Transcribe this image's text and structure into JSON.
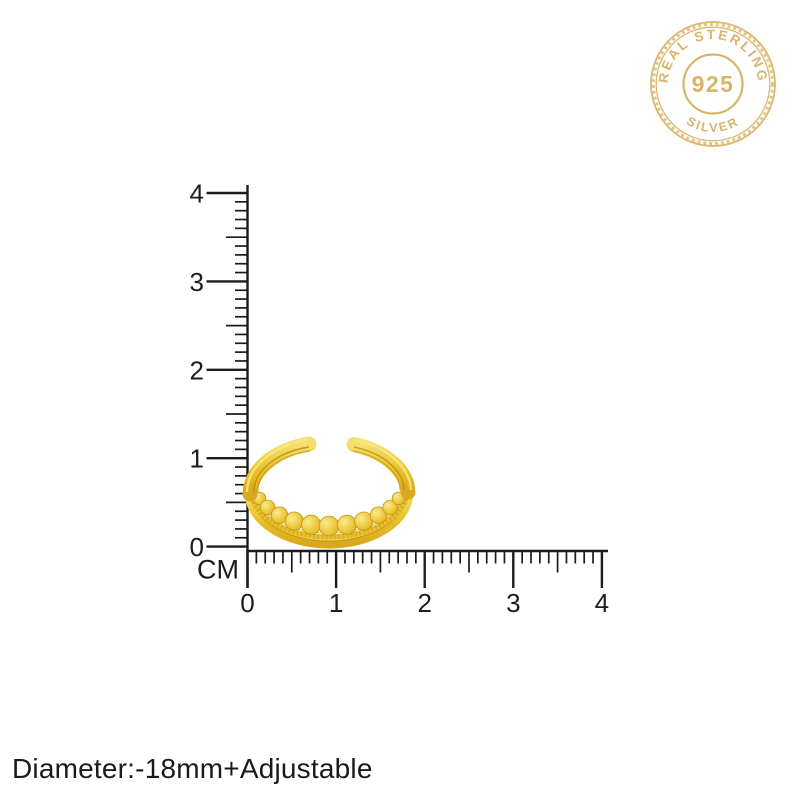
{
  "page": {
    "background_color": "#ffffff"
  },
  "badge": {
    "arc_top_text": "REAL STERLING",
    "center_text": "925",
    "arc_bottom_text": "SILVER",
    "color": "#d9b469"
  },
  "ruler": {
    "unit_label": "CM",
    "vertical_labels": [
      "4",
      "3",
      "2",
      "1",
      "0"
    ],
    "horizontal_labels": [
      "0",
      "1",
      "2",
      "3",
      "4"
    ],
    "range_cm": [
      0,
      4
    ],
    "color": "#1c1c1c"
  },
  "product": {
    "item": "gold open adjustable ring with beaded band",
    "gold_color": "#e9c335",
    "measured_width_cm": 1.8
  },
  "caption": {
    "text": "Diameter:-18mm+Adjustable"
  }
}
